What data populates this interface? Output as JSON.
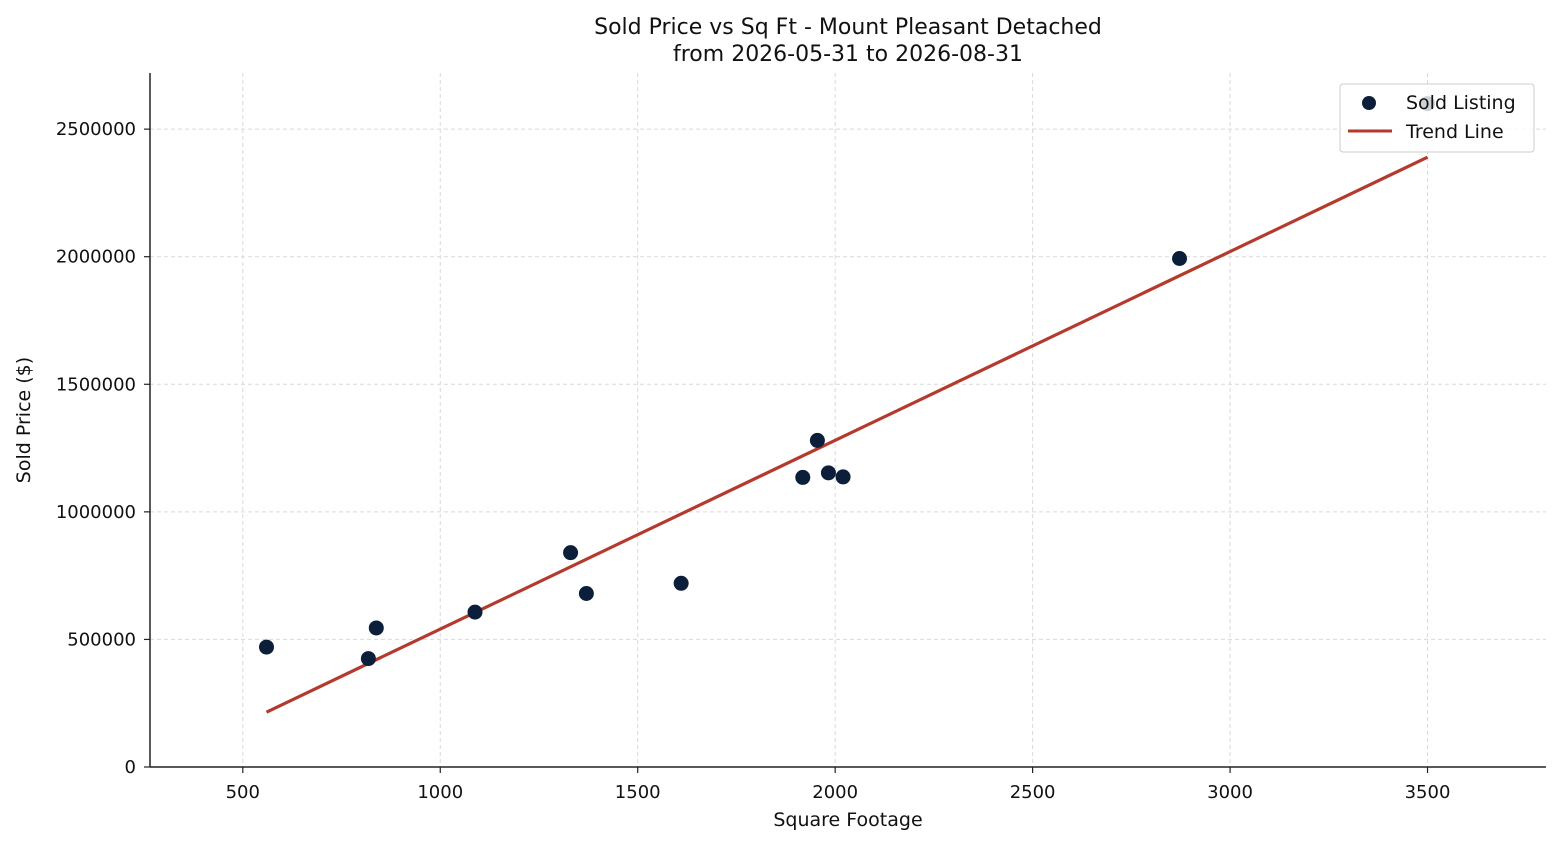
{
  "chart_data": {
    "type": "scatter",
    "title": "Sold Price vs Sq Ft - Mount Pleasant Detached",
    "subtitle": "from 2026-05-31 to 2026-08-31",
    "xlabel": "Square Footage",
    "ylabel": "Sold Price ($)",
    "xlim": [
      265,
      3800
    ],
    "ylim": [
      0,
      2720000
    ],
    "x_ticks": [
      500,
      1000,
      1500,
      2000,
      2500,
      3000,
      3500
    ],
    "y_ticks": [
      0,
      500000,
      1000000,
      1500000,
      2000000,
      2500000
    ],
    "x_tick_labels": [
      "500",
      "1000",
      "1500",
      "2000",
      "2500",
      "3000",
      "3500"
    ],
    "y_tick_labels": [
      "0",
      "500000",
      "1000000",
      "1500000",
      "2000000",
      "2500000"
    ],
    "grid": true,
    "legend": {
      "placement": "top-right",
      "entries": [
        {
          "label": "Sold Listing",
          "kind": "marker"
        },
        {
          "label": "Trend Line",
          "kind": "line"
        }
      ]
    },
    "series": [
      {
        "name": "Sold Listing",
        "type": "scatter",
        "color": "#0c1f3a",
        "points": [
          {
            "x": 560,
            "y": 470000
          },
          {
            "x": 818,
            "y": 425000
          },
          {
            "x": 838,
            "y": 545000
          },
          {
            "x": 1088,
            "y": 607000
          },
          {
            "x": 1330,
            "y": 840000
          },
          {
            "x": 1370,
            "y": 680000
          },
          {
            "x": 1610,
            "y": 720000
          },
          {
            "x": 1918,
            "y": 1135000
          },
          {
            "x": 1955,
            "y": 1280000
          },
          {
            "x": 1983,
            "y": 1153000
          },
          {
            "x": 2020,
            "y": 1137000
          },
          {
            "x": 2872,
            "y": 1993000
          },
          {
            "x": 3500,
            "y": 2600000
          }
        ]
      },
      {
        "name": "Trend Line",
        "type": "line",
        "color": "#b53a2e",
        "points": [
          {
            "x": 560,
            "y": 215000
          },
          {
            "x": 3500,
            "y": 2390000
          }
        ]
      }
    ]
  }
}
